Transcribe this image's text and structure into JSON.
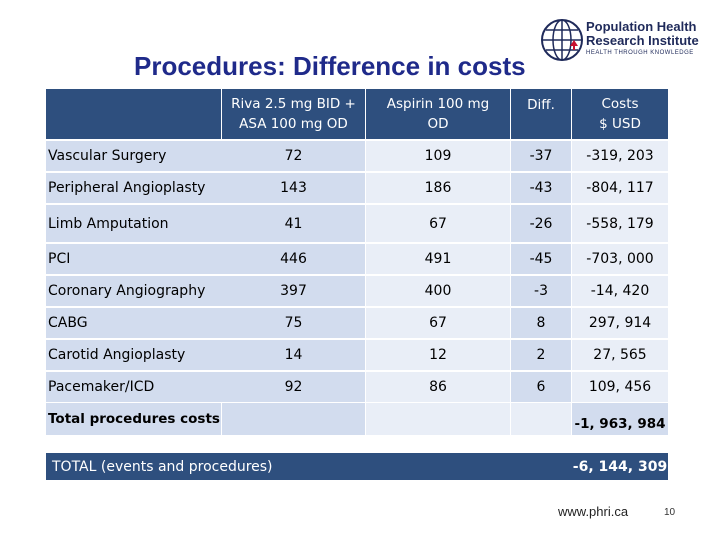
{
  "slide": {
    "title": "Procedures: Difference in costs",
    "logo": {
      "line1": "Population Health",
      "line2": "Research Institute",
      "tagline": "HEALTH THROUGH KNOWLEDGE"
    },
    "footer_url": "www.phri.ca",
    "page_number": "10"
  },
  "table": {
    "headers": {
      "riva": [
        "Riva 2.5 mg BID +",
        "ASA 100 mg OD"
      ],
      "aspirin": [
        "Aspirin 100 mg",
        "OD"
      ],
      "diff": "Diff.",
      "costs": [
        "Costs",
        "$ USD"
      ]
    },
    "rows": [
      {
        "label": "Vascular Surgery",
        "riva": "72",
        "aspirin": "109",
        "diff": "-37",
        "costs": "-319, 203"
      },
      {
        "label": "Peripheral Angioplasty",
        "riva": "143",
        "aspirin": "186",
        "diff": "-43",
        "costs": "-804, 117"
      },
      {
        "label": "Limb Amputation",
        "riva": "41",
        "aspirin": "67",
        "diff": "-26",
        "costs": "-558, 179"
      },
      {
        "label": "PCI",
        "riva": "446",
        "aspirin": "491",
        "diff": "-45",
        "costs": "-703, 000"
      },
      {
        "label": "Coronary Angiography",
        "riva": "397",
        "aspirin": "400",
        "diff": "-3",
        "costs": "-14, 420"
      },
      {
        "label": "CABG",
        "riva": "75",
        "aspirin": "67",
        "diff": "8",
        "costs": "297, 914"
      },
      {
        "label": "Carotid Angioplasty",
        "riva": "14",
        "aspirin": "12",
        "diff": "2",
        "costs": "27, 565"
      },
      {
        "label": "Pacemaker/ICD",
        "riva": "92",
        "aspirin": "86",
        "diff": "6",
        "costs": "109, 456"
      }
    ],
    "total_procedures": {
      "label": "Total procedures costs",
      "value": "-1, 963, 984"
    },
    "total_events": {
      "label": "TOTAL (events and procedures)",
      "value": "-6, 144, 309"
    }
  },
  "colors": {
    "header_bg": "#2e4f7e",
    "row_shade": "#d2dcee",
    "row_light": "#e9eef7",
    "title": "#1f2a8a"
  }
}
